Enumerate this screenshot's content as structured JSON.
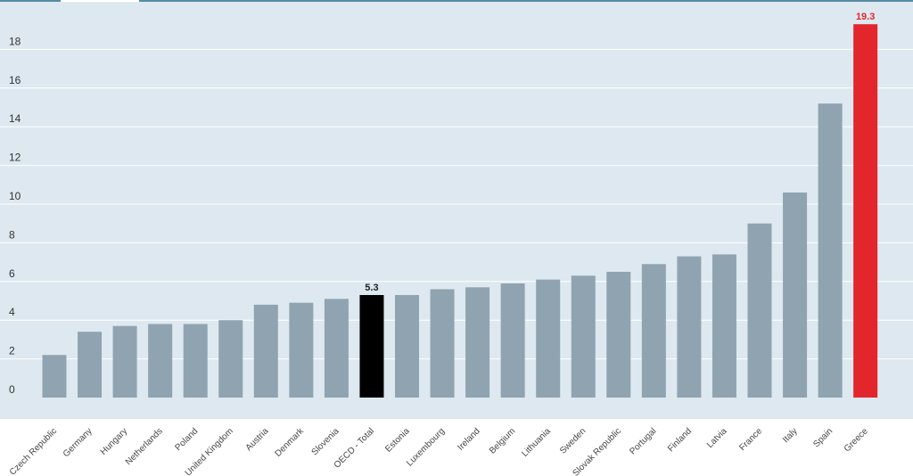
{
  "chart_data": {
    "type": "bar",
    "categories": [
      "Czech Republic",
      "Germany",
      "Hungary",
      "Netherlands",
      "Poland",
      "United Kingdom",
      "Austria",
      "Denmark",
      "Slovenia",
      "OECD - Total",
      "Estonia",
      "Luxembourg",
      "Ireland",
      "Belgium",
      "Lithuania",
      "Sweden",
      "Slovak Republic",
      "Portugal",
      "Finland",
      "Latvia",
      "France",
      "Italy",
      "Spain",
      "Greece"
    ],
    "values": [
      2.2,
      3.4,
      3.7,
      3.8,
      3.8,
      4.0,
      4.8,
      4.9,
      5.1,
      5.3,
      5.3,
      5.6,
      5.7,
      5.9,
      6.1,
      6.3,
      6.5,
      6.9,
      7.3,
      7.4,
      9.0,
      10.6,
      15.2,
      19.3
    ],
    "highlight": {
      "OECD - Total": {
        "color": "#000000",
        "label": "5.3"
      },
      "Greece": {
        "color": "#e3262b",
        "label": "19.3"
      }
    },
    "bar_color": "#8fa4b0",
    "label_color_highlight": "#e3262b",
    "title": "",
    "xlabel": "",
    "ylabel": "",
    "ylim": [
      0,
      19.3
    ],
    "yticks": [
      0,
      2,
      4,
      6,
      8,
      10,
      12,
      14,
      16,
      18
    ],
    "grid": true,
    "legend": "none",
    "background": "#dde8f0"
  }
}
